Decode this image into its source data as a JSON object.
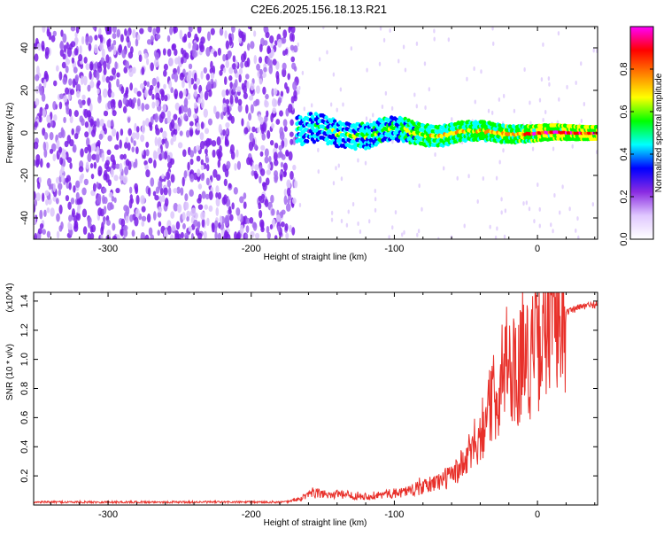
{
  "title": "C2E6.2025.156.18.13.R21",
  "chart_data": [
    {
      "type": "heatmap",
      "xlabel": "Height of straight line (km)",
      "ylabel": "Frequency (Hz)",
      "xlim": [
        -352,
        42
      ],
      "ylim": [
        -50,
        50
      ],
      "xticks": [
        -300,
        -200,
        -100,
        0
      ],
      "yticks": [
        -40,
        -20,
        0,
        20,
        40
      ],
      "colorbar": {
        "label": "Normalized spectral amplitude",
        "range": [
          0,
          1
        ],
        "ticks": [
          0,
          0.2,
          0.4,
          0.6,
          0.8
        ],
        "tick_labels": [
          "0.0",
          "0.2",
          "0.4",
          "0.6",
          "0.8"
        ],
        "colors": [
          "#ffffff",
          "#e0c8ff",
          "#8a2be2",
          "#0000ff",
          "#00ffff",
          "#00ff00",
          "#ffff00",
          "#ff8000",
          "#ff0000",
          "#ff00ff"
        ]
      },
      "features": {
        "noise_region_x": [
          -352,
          -168
        ],
        "signal_start_x": -168,
        "signal_center_hz": 0,
        "signal_peak_x": [
          -10,
          30
        ]
      }
    },
    {
      "type": "line",
      "xlabel": "Height of straight line (km)",
      "ylabel": "SNR (10 * v/v)",
      "y_multiplier": "(x10^4)",
      "xlim": [
        -352,
        42
      ],
      "ylim": [
        0,
        1.46
      ],
      "xticks": [
        -300,
        -200,
        -100,
        0
      ],
      "yticks": [
        0.2,
        0.4,
        0.6,
        0.8,
        1.0,
        1.2,
        1.4
      ],
      "ytick_labels": [
        "0.2",
        "0.4",
        "0.6",
        "0.8",
        "1.0",
        "1.2",
        "1.4"
      ],
      "series": [
        {
          "color": "#e8302a",
          "x": [
            -352,
            -300,
            -250,
            -200,
            -175,
            -165,
            -155,
            -140,
            -120,
            -100,
            -80,
            -60,
            -50,
            -40,
            -30,
            -20,
            -15,
            -10,
            -5,
            0,
            10,
            20,
            30,
            42
          ],
          "y": [
            0.02,
            0.02,
            0.02,
            0.02,
            0.02,
            0.05,
            0.08,
            0.07,
            0.06,
            0.08,
            0.12,
            0.2,
            0.3,
            0.5,
            0.75,
            1.0,
            0.9,
            1.05,
            1.0,
            1.1,
            1.25,
            1.32,
            1.36,
            1.38
          ]
        }
      ]
    }
  ]
}
